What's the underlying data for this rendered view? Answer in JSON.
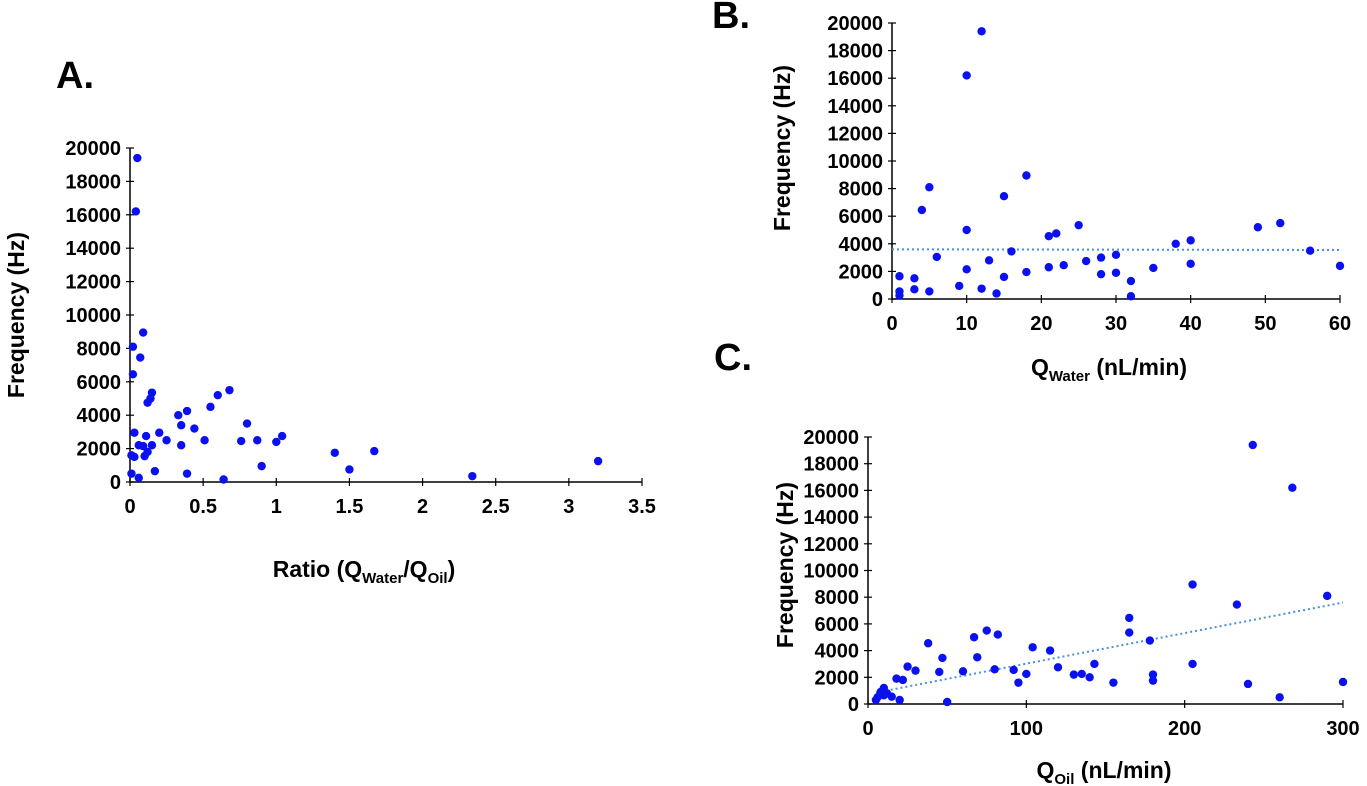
{
  "colors": {
    "points": "#0a10f0",
    "trendline": "#4a90d9",
    "axis": "#000000"
  },
  "chart_data": [
    {
      "panel": "A.",
      "type": "scatter",
      "xlabel": "Ratio (Q",
      "xlabel_sub1": "Water",
      "xlabel_mid": "/Q",
      "xlabel_sub2": "Oil",
      "xlabel_end": ")",
      "ylabel": "Frequency (Hz)",
      "xlim": [
        0,
        3.5
      ],
      "ylim": [
        0,
        20000
      ],
      "xticks": [
        "0",
        "0.5",
        "1",
        "1.5",
        "2",
        "2.5",
        "3",
        "3.5"
      ],
      "yticks": [
        "0",
        "2000",
        "4000",
        "6000",
        "8000",
        "10000",
        "12000",
        "14000",
        "16000",
        "18000",
        "20000"
      ],
      "trendline": null,
      "points": [
        [
          0.05,
          19400
        ],
        [
          0.04,
          16200
        ],
        [
          0.09,
          8950
        ],
        [
          0.02,
          8100
        ],
        [
          0.07,
          7450
        ],
        [
          0.02,
          6450
        ],
        [
          0.15,
          5350
        ],
        [
          0.68,
          5500
        ],
        [
          0.6,
          5200
        ],
        [
          0.14,
          5000
        ],
        [
          0.55,
          4500
        ],
        [
          0.12,
          4750
        ],
        [
          0.39,
          4250
        ],
        [
          0.33,
          4000
        ],
        [
          0.44,
          3200
        ],
        [
          0.8,
          3500
        ],
        [
          0.35,
          3400
        ],
        [
          0.2,
          2950
        ],
        [
          0.03,
          2950
        ],
        [
          1.04,
          2750
        ],
        [
          0.11,
          2750
        ],
        [
          0.25,
          2500
        ],
        [
          0.51,
          2500
        ],
        [
          0.76,
          2450
        ],
        [
          0.87,
          2500
        ],
        [
          1.0,
          2400
        ],
        [
          0.35,
          2200
        ],
        [
          0.06,
          2200
        ],
        [
          0.09,
          2150
        ],
        [
          0.15,
          2200
        ],
        [
          1.67,
          1850
        ],
        [
          0.12,
          1800
        ],
        [
          1.4,
          1750
        ],
        [
          0.01,
          1600
        ],
        [
          0.1,
          1550
        ],
        [
          0.03,
          1500
        ],
        [
          3.2,
          1250
        ],
        [
          0.9,
          950
        ],
        [
          1.5,
          750
        ],
        [
          0.17,
          650
        ],
        [
          0.01,
          500
        ],
        [
          0.39,
          500
        ],
        [
          2.34,
          350
        ],
        [
          0.06,
          250
        ],
        [
          0.64,
          150
        ]
      ]
    },
    {
      "panel": "B.",
      "type": "scatter",
      "xlabel": "Q",
      "xlabel_sub1": "Water",
      "xlabel_end": " (nL/min)",
      "ylabel": "Frequency (Hz)",
      "xlim": [
        0,
        60
      ],
      "ylim": [
        0,
        20000
      ],
      "xticks": [
        "0",
        "10",
        "20",
        "30",
        "40",
        "50",
        "60"
      ],
      "yticks": [
        "0",
        "2000",
        "4000",
        "6000",
        "8000",
        "10000",
        "12000",
        "14000",
        "16000",
        "18000",
        "20000"
      ],
      "trendline": {
        "x": [
          0,
          60
        ],
        "y": [
          3600,
          3550
        ]
      },
      "points": [
        [
          12,
          19400
        ],
        [
          10,
          16200
        ],
        [
          18,
          8950
        ],
        [
          5,
          8100
        ],
        [
          15,
          7450
        ],
        [
          4,
          6450
        ],
        [
          52,
          5500
        ],
        [
          25,
          5350
        ],
        [
          49,
          5200
        ],
        [
          10,
          5000
        ],
        [
          22,
          4750
        ],
        [
          21,
          4550
        ],
        [
          40,
          4250
        ],
        [
          38,
          4000
        ],
        [
          56,
          3500
        ],
        [
          16,
          3450
        ],
        [
          30,
          3200
        ],
        [
          6,
          3050
        ],
        [
          28,
          3000
        ],
        [
          13,
          2800
        ],
        [
          26,
          2750
        ],
        [
          40,
          2550
        ],
        [
          23,
          2450
        ],
        [
          60,
          2400
        ],
        [
          21,
          2300
        ],
        [
          35,
          2250
        ],
        [
          10,
          2150
        ],
        [
          18,
          1950
        ],
        [
          30,
          1900
        ],
        [
          28,
          1800
        ],
        [
          1,
          1650
        ],
        [
          15,
          1600
        ],
        [
          3,
          1500
        ],
        [
          32,
          1300
        ],
        [
          9,
          950
        ],
        [
          12,
          750
        ],
        [
          3,
          700
        ],
        [
          1,
          550
        ],
        [
          5,
          550
        ],
        [
          14,
          400
        ],
        [
          1,
          250
        ],
        [
          32,
          200
        ]
      ]
    },
    {
      "panel": "C.",
      "type": "scatter",
      "xlabel": "Q",
      "xlabel_sub1": "Oil",
      "xlabel_end": " (nL/min)",
      "ylabel": "Frequency (Hz)",
      "xlim": [
        0,
        300
      ],
      "ylim": [
        0,
        20000
      ],
      "xticks": [
        "0",
        "100",
        "200",
        "300"
      ],
      "yticks": [
        "0",
        "2000",
        "4000",
        "6000",
        "8000",
        "10000",
        "12000",
        "14000",
        "16000",
        "18000",
        "20000"
      ],
      "trendline": {
        "x": [
          5,
          300
        ],
        "y": [
          850,
          7600
        ]
      },
      "points": [
        [
          243,
          19400
        ],
        [
          268,
          16200
        ],
        [
          205,
          8950
        ],
        [
          290,
          8100
        ],
        [
          233,
          7450
        ],
        [
          165,
          6450
        ],
        [
          75,
          5500
        ],
        [
          165,
          5350
        ],
        [
          82,
          5200
        ],
        [
          67,
          5000
        ],
        [
          178,
          4750
        ],
        [
          38,
          4550
        ],
        [
          104,
          4250
        ],
        [
          115,
          4000
        ],
        [
          69,
          3500
        ],
        [
          47,
          3450
        ],
        [
          143,
          3000
        ],
        [
          205,
          3000
        ],
        [
          120,
          2750
        ],
        [
          25,
          2800
        ],
        [
          30,
          2500
        ],
        [
          80,
          2600
        ],
        [
          92,
          2550
        ],
        [
          60,
          2450
        ],
        [
          45,
          2400
        ],
        [
          100,
          2250
        ],
        [
          135,
          2250
        ],
        [
          130,
          2200
        ],
        [
          180,
          2200
        ],
        [
          140,
          2000
        ],
        [
          18,
          1900
        ],
        [
          22,
          1800
        ],
        [
          180,
          1750
        ],
        [
          300,
          1650
        ],
        [
          95,
          1600
        ],
        [
          155,
          1600
        ],
        [
          240,
          1500
        ],
        [
          10,
          1200
        ],
        [
          8,
          900
        ],
        [
          12,
          800
        ],
        [
          6,
          500
        ],
        [
          10,
          650
        ],
        [
          15,
          550
        ],
        [
          20,
          300
        ],
        [
          260,
          500
        ],
        [
          5,
          300
        ],
        [
          50,
          150
        ]
      ]
    }
  ]
}
